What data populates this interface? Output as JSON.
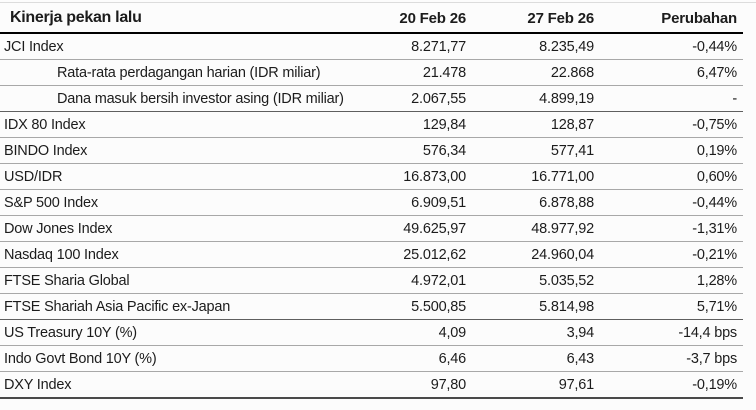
{
  "table": {
    "title": "Kinerja pekan lalu",
    "col_headers": [
      "20 Feb 26",
      "27 Feb 26",
      "Perubahan"
    ],
    "rows": [
      {
        "label": "JCI Index",
        "indent": false,
        "v1": "8.271,77",
        "v2": "8.235,49",
        "change": "-0,44%",
        "section_end": false
      },
      {
        "label": "Rata-rata perdagangan harian (IDR miliar)",
        "indent": true,
        "v1": "21.478",
        "v2": "22.868",
        "change": "6,47%",
        "section_end": false
      },
      {
        "label": "Dana masuk bersih investor asing (IDR miliar)",
        "indent": true,
        "v1": "2.067,55",
        "v2": "4.899,19",
        "change": "-",
        "section_end": true
      },
      {
        "label": "IDX 80 Index",
        "indent": false,
        "v1": "129,84",
        "v2": "128,87",
        "change": "-0,75%",
        "section_end": false
      },
      {
        "label": "BINDO Index",
        "indent": false,
        "v1": "576,34",
        "v2": "577,41",
        "change": "0,19%",
        "section_end": false
      },
      {
        "label": "USD/IDR",
        "indent": false,
        "v1": "16.873,00",
        "v2": "16.771,00",
        "change": "0,60%",
        "section_end": false
      },
      {
        "label": "S&P 500 Index",
        "indent": false,
        "v1": "6.909,51",
        "v2": "6.878,88",
        "change": "-0,44%",
        "section_end": false
      },
      {
        "label": "Dow Jones Index",
        "indent": false,
        "v1": "49.625,97",
        "v2": "48.977,92",
        "change": "-1,31%",
        "section_end": false
      },
      {
        "label": "Nasdaq 100 Index",
        "indent": false,
        "v1": "25.012,62",
        "v2": "24.960,04",
        "change": "-0,21%",
        "section_end": false
      },
      {
        "label": "FTSE Sharia Global",
        "indent": false,
        "v1": "4.972,01",
        "v2": "5.035,52",
        "change": "1,28%",
        "section_end": false
      },
      {
        "label": "FTSE Shariah Asia Pacific ex-Japan",
        "indent": false,
        "v1": "5.500,85",
        "v2": "5.814,98",
        "change": "5,71%",
        "section_end": true
      },
      {
        "label": "US Treasury 10Y (%)",
        "indent": false,
        "v1": "4,09",
        "v2": "3,94",
        "change": "-14,4 bps",
        "section_end": false
      },
      {
        "label": "Indo Govt Bond 10Y (%)",
        "indent": false,
        "v1": "6,46",
        "v2": "6,43",
        "change": "-3,7 bps",
        "section_end": false
      },
      {
        "label": "DXY Index",
        "indent": false,
        "v1": "97,80",
        "v2": "97,61",
        "change": "-0,19%",
        "section_end": false
      }
    ]
  },
  "colors": {
    "background": "#fcfcfc",
    "text": "#1c1c1c",
    "header_rule": "#000000",
    "row_separator": "#a8a8a8",
    "section_separator": "#5f5f5f",
    "bottom_rule": "#4a4a4a",
    "top_rule": "#dcdcdc"
  }
}
